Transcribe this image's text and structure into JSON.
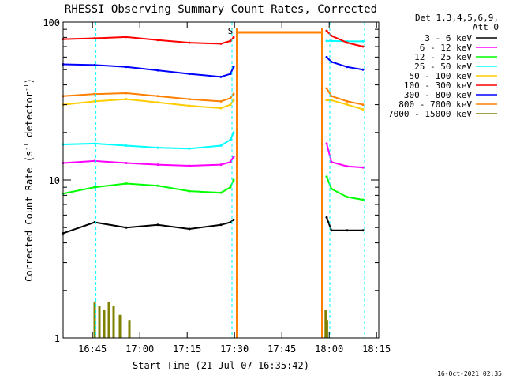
{
  "chart_data": {
    "type": "line",
    "title": "RHESSI Observing Summary Count Rates, Corrected",
    "ylabel": "Corrected Count Rate (s",
    "ylabel_sup1": "-1",
    "ylabel_mid": " detector",
    "ylabel_sup2": "-1",
    "ylabel_end": ")",
    "xlabel": "Start Time (21-Jul-07 16:35:42)",
    "yscale": "log",
    "ylim": [
      1,
      100
    ],
    "xlim_minutes": [
      0,
      100
    ],
    "x_ticks": [
      {
        "label": "16:45",
        "minute": 9.3
      },
      {
        "label": "17:00",
        "minute": 24.3
      },
      {
        "label": "17:15",
        "minute": 39.3
      },
      {
        "label": "17:30",
        "minute": 54.3
      },
      {
        "label": "17:45",
        "minute": 69.3
      },
      {
        "label": "18:00",
        "minute": 84.3
      },
      {
        "label": "18:15",
        "minute": 99.3
      }
    ],
    "y_ticks": [
      {
        "label": "1",
        "value": 1
      },
      {
        "label": "10",
        "value": 10
      },
      {
        "label": "100",
        "value": 100
      }
    ],
    "detector_header": "Det 1,3,4,5,6,9,",
    "attenuator_header": "Att 0",
    "annotation": "S",
    "timestamp": "16-Oct-2021 02:35",
    "legend_position": "right",
    "data_gaps_minutes": [
      [
        54.0,
        83.0
      ]
    ],
    "marker_lines_minutes": [
      10.4,
      53.5,
      84.5,
      95.5
    ],
    "series": [
      {
        "name": "3 - 6 keV",
        "color": "#000000",
        "x": [
          0,
          10,
          20,
          30,
          40,
          50,
          53,
          54,
          83.5,
          85,
          90,
          95
        ],
        "y": [
          4.6,
          5.4,
          5.0,
          5.2,
          4.9,
          5.2,
          5.4,
          5.6,
          5.8,
          4.8,
          4.8,
          4.8
        ]
      },
      {
        "name": "6 - 12 keV",
        "color": "#ff00ff",
        "x": [
          0,
          10,
          20,
          30,
          40,
          50,
          53,
          54,
          83.5,
          85,
          90,
          95
        ],
        "y": [
          12.8,
          13.2,
          12.8,
          12.5,
          12.3,
          12.5,
          13.0,
          14.0,
          17.0,
          13.0,
          12.2,
          12.0
        ]
      },
      {
        "name": "12 - 25 keV",
        "color": "#00ff00",
        "x": [
          0,
          10,
          20,
          30,
          40,
          50,
          53,
          54,
          83.5,
          85,
          90,
          95
        ],
        "y": [
          8.2,
          9.0,
          9.5,
          9.2,
          8.5,
          8.3,
          9.0,
          10.0,
          10.5,
          8.8,
          7.8,
          7.5
        ]
      },
      {
        "name": "25 - 50 keV",
        "color": "#00ffff",
        "x": [
          0,
          10,
          20,
          30,
          40,
          50,
          53,
          54,
          83.5,
          85,
          90,
          95
        ],
        "y": [
          16.8,
          17.0,
          16.5,
          16.0,
          15.8,
          16.5,
          18.0,
          20.0,
          76.0,
          76.0,
          75.5,
          75.5
        ]
      },
      {
        "name": "50 - 100 keV",
        "color": "#ffcc00",
        "x": [
          0,
          10,
          20,
          30,
          40,
          50,
          53,
          54,
          83.5,
          85,
          90,
          95
        ],
        "y": [
          30.0,
          31.5,
          32.5,
          31.0,
          29.5,
          28.5,
          30.0,
          32.0,
          32.0,
          32.0,
          30.0,
          28.0
        ]
      },
      {
        "name": "100 - 300 keV",
        "color": "#ff0000",
        "x": [
          0,
          10,
          20,
          30,
          40,
          50,
          53,
          54,
          83.5,
          85,
          90,
          95
        ],
        "y": [
          78.0,
          79.0,
          80.5,
          77.0,
          74.0,
          73.0,
          76.0,
          80.0,
          88.0,
          82.0,
          74.0,
          70.0
        ]
      },
      {
        "name": "300 - 800 keV",
        "color": "#0000ff",
        "x": [
          0,
          10,
          20,
          30,
          40,
          50,
          53,
          54,
          83.5,
          85,
          90,
          95
        ],
        "y": [
          54.0,
          53.5,
          52.0,
          49.5,
          47.0,
          45.0,
          47.0,
          52.0,
          60.0,
          56.0,
          52.0,
          50.0
        ]
      },
      {
        "name": "800 - 7000 keV",
        "color": "#ff8000",
        "x": [
          0,
          10,
          20,
          30,
          40,
          50,
          53,
          54,
          83.5,
          85,
          90,
          95
        ],
        "y": [
          34.0,
          35.0,
          35.5,
          34.0,
          32.5,
          31.5,
          33.0,
          35.0,
          38.0,
          34.0,
          31.5,
          30.0
        ]
      },
      {
        "name": "7000 - 15000 keV",
        "color": "#808000",
        "x": [
          10.0,
          11.5,
          13.0,
          14.5,
          16.0,
          18.0,
          21.0,
          83.2,
          83.6
        ],
        "y": [
          1.7,
          1.6,
          1.5,
          1.7,
          1.6,
          1.4,
          1.3,
          1.5,
          1.3
        ]
      }
    ]
  }
}
